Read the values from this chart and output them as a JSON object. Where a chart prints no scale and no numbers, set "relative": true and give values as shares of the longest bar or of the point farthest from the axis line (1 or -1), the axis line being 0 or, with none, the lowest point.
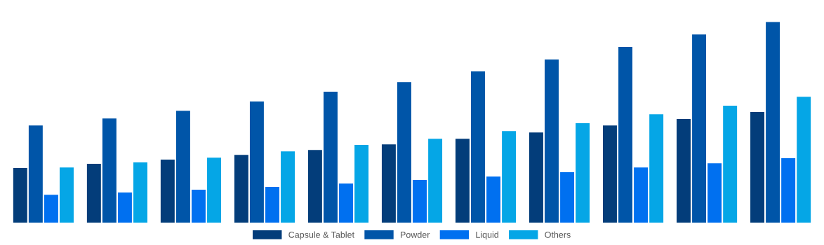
{
  "chart_data": {
    "type": "bar",
    "relative": true,
    "categories": [
      null,
      null,
      null,
      null,
      null,
      null,
      null,
      null,
      null,
      null,
      null
    ],
    "series": [
      {
        "name": "Capsule & Tablet",
        "color": "#033d7a",
        "values": [
          0.272,
          0.293,
          0.314,
          0.338,
          0.362,
          0.39,
          0.418,
          0.449,
          0.484,
          0.516,
          0.551
        ]
      },
      {
        "name": "Powder",
        "color": "#0055a8",
        "values": [
          0.484,
          0.519,
          0.557,
          0.603,
          0.652,
          0.7,
          0.753,
          0.812,
          0.875,
          0.937,
          1
        ]
      },
      {
        "name": "Liquid",
        "color": "#0070f0",
        "values": [
          0.139,
          0.15,
          0.164,
          0.178,
          0.195,
          0.213,
          0.23,
          0.251,
          0.275,
          0.296,
          0.321
        ]
      },
      {
        "name": "Others",
        "color": "#05a6e6",
        "values": [
          0.275,
          0.3,
          0.324,
          0.355,
          0.387,
          0.418,
          0.456,
          0.495,
          0.54,
          0.582,
          0.627
        ]
      }
    ],
    "legend": "bottom"
  }
}
